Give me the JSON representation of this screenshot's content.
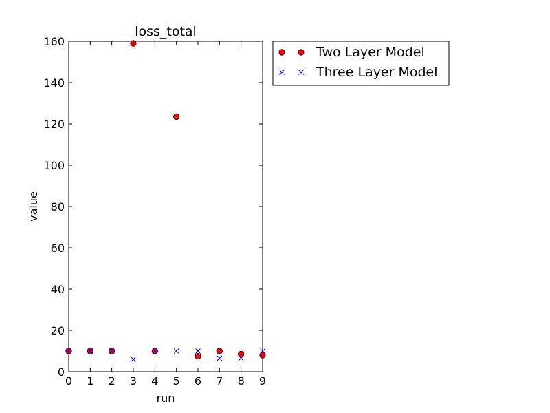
{
  "chart_data": {
    "type": "scatter",
    "title": "loss_total",
    "xlabel": "run",
    "ylabel": "value",
    "xlim": [
      0,
      9
    ],
    "ylim": [
      0,
      160
    ],
    "xticks": [
      "0",
      "1",
      "2",
      "3",
      "4",
      "5",
      "6",
      "7",
      "8",
      "9"
    ],
    "yticks": [
      "0",
      "20",
      "40",
      "60",
      "80",
      "100",
      "120",
      "140",
      "160"
    ],
    "grid": false,
    "legend_position": "outside-right-top",
    "series": [
      {
        "name": "Two Layer Model",
        "marker": "circle",
        "color": "#ff0000",
        "x": [
          0,
          1,
          2,
          3,
          4,
          5,
          6,
          7,
          8,
          9
        ],
        "y": [
          10,
          10,
          10,
          159,
          10,
          123.5,
          7.5,
          10,
          8.5,
          8
        ]
      },
      {
        "name": "Three Layer Model",
        "marker": "x",
        "color": "#0000ff",
        "x": [
          0,
          1,
          2,
          3,
          4,
          5,
          6,
          7,
          8,
          9
        ],
        "y": [
          10,
          10,
          10,
          6,
          10,
          10,
          10,
          6.5,
          6.5,
          10
        ]
      }
    ]
  }
}
